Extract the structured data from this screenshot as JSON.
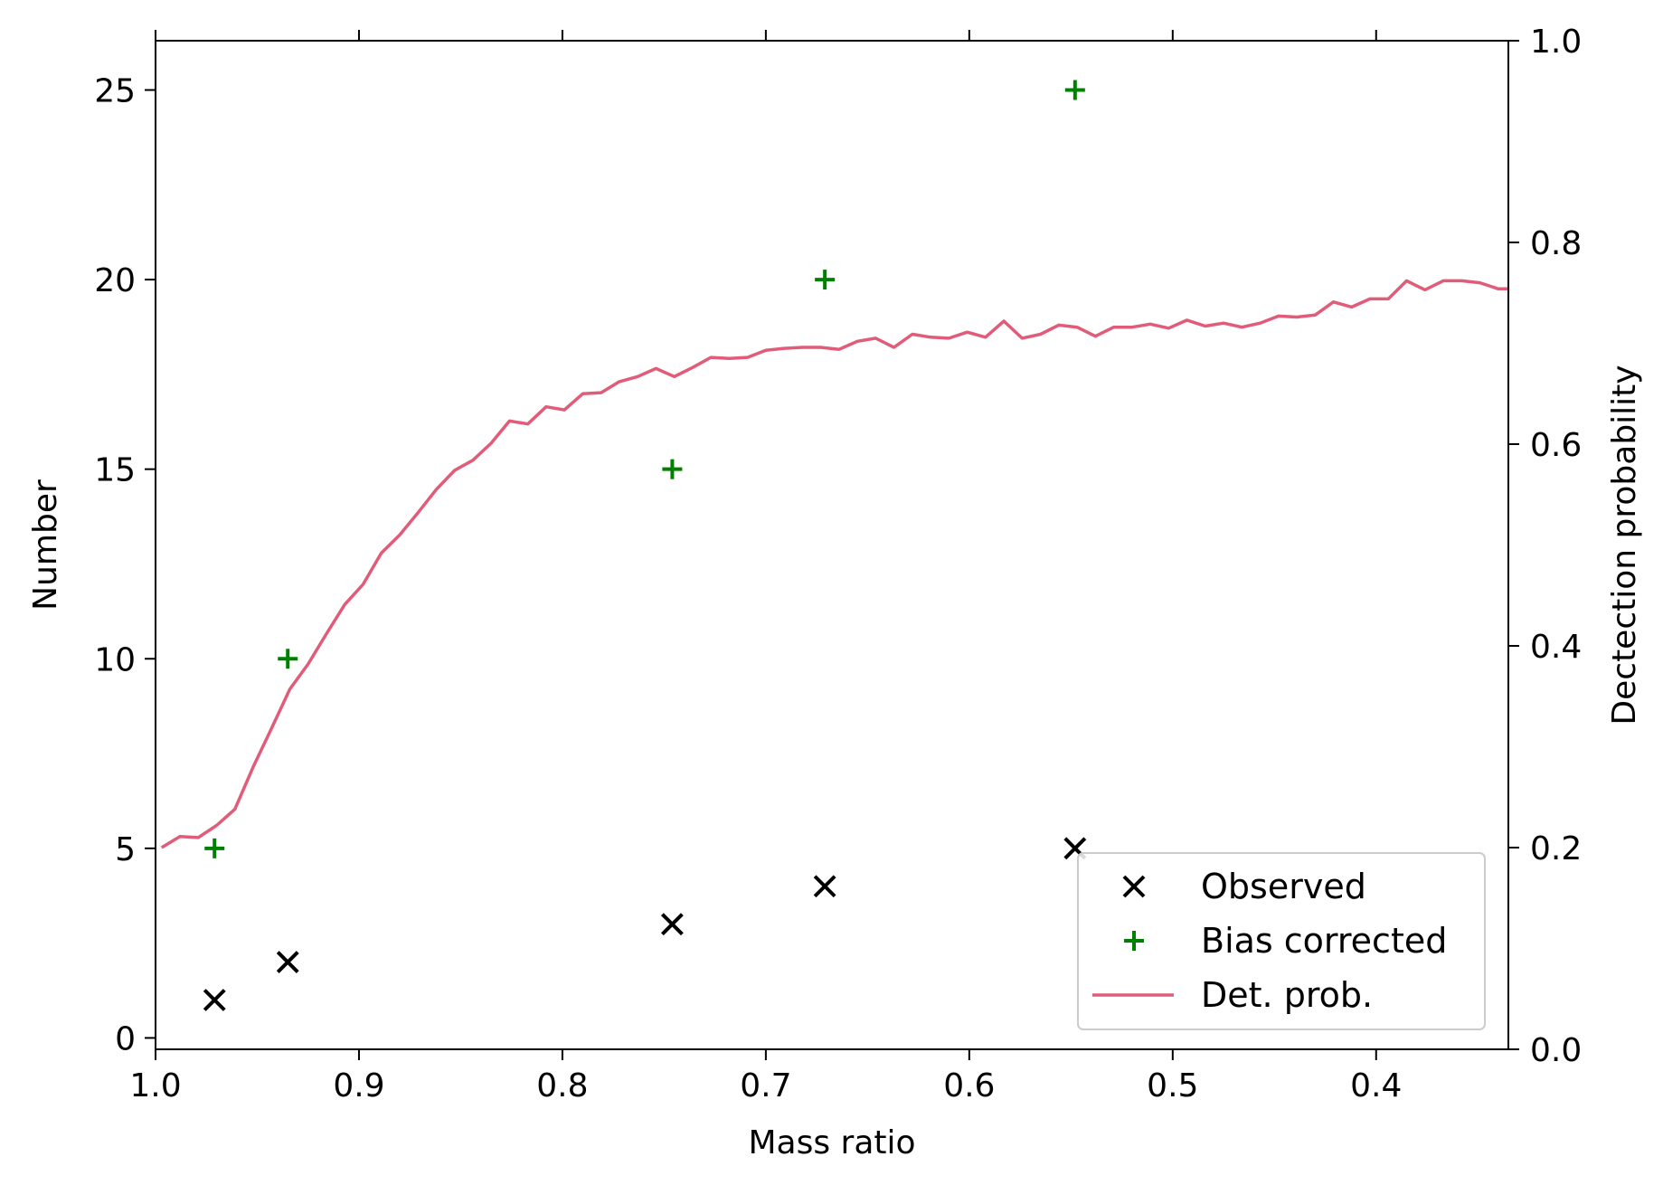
{
  "chart_data": {
    "type": "scatter",
    "xlabel": "Mass ratio",
    "ylabel": "Number",
    "y2label": "Dectection probability",
    "xlim": [
      1.0,
      0.335
    ],
    "x_reversed": true,
    "ylim": [
      -0.3,
      26.3
    ],
    "y2lim": [
      0.0,
      1.0
    ],
    "x_ticks": [
      "1.0",
      "0.9",
      "0.8",
      "0.7",
      "0.6",
      "0.5",
      "0.4"
    ],
    "x_tick_values": [
      1.0,
      0.9,
      0.8,
      0.7,
      0.6,
      0.5,
      0.4
    ],
    "y_ticks": [
      "0",
      "5",
      "10",
      "15",
      "20",
      "25"
    ],
    "y_tick_values": [
      0,
      5,
      10,
      15,
      20,
      25
    ],
    "y2_ticks": [
      "0.0",
      "0.2",
      "0.4",
      "0.6",
      "0.8",
      "1.0"
    ],
    "y2_tick_values": [
      0.0,
      0.2,
      0.4,
      0.6,
      0.8,
      1.0
    ],
    "grid": false,
    "legend_position": "bottom-right",
    "series": [
      {
        "name": "Observed",
        "marker": "x",
        "color": "#000000",
        "axis": "left",
        "x": [
          0.971,
          0.935,
          0.746,
          0.671,
          0.548
        ],
        "y": [
          1,
          2,
          3,
          4,
          5
        ]
      },
      {
        "name": "Bias corrected",
        "marker": "+",
        "color": "#008000",
        "axis": "left",
        "x": [
          0.971,
          0.935,
          0.746,
          0.671,
          0.548
        ],
        "y": [
          5,
          10,
          15,
          20,
          25
        ]
      },
      {
        "name": "Det. prob.",
        "type": "line",
        "color": "#e05c78",
        "axis": "right",
        "x": [
          0.997,
          0.988,
          0.979,
          0.97,
          0.961,
          0.952,
          0.943,
          0.934,
          0.925,
          0.916,
          0.907,
          0.898,
          0.889,
          0.88,
          0.871,
          0.862,
          0.853,
          0.844,
          0.835,
          0.826,
          0.817,
          0.808,
          0.799,
          0.79,
          0.781,
          0.772,
          0.763,
          0.754,
          0.745,
          0.736,
          0.727,
          0.718,
          0.709,
          0.7,
          0.691,
          0.682,
          0.673,
          0.664,
          0.655,
          0.646,
          0.637,
          0.628,
          0.619,
          0.61,
          0.601,
          0.592,
          0.583,
          0.574,
          0.565,
          0.556,
          0.547,
          0.538,
          0.529,
          0.52,
          0.511,
          0.502,
          0.493,
          0.484,
          0.475,
          0.466,
          0.457,
          0.448,
          0.439,
          0.43,
          0.421,
          0.412,
          0.403,
          0.394,
          0.385,
          0.376,
          0.367,
          0.358,
          0.349,
          0.34,
          0.335
        ],
        "y": [
          0.2,
          0.211,
          0.21,
          0.222,
          0.238,
          0.28,
          0.318,
          0.357,
          0.382,
          0.412,
          0.441,
          0.461,
          0.492,
          0.51,
          0.532,
          0.555,
          0.574,
          0.584,
          0.601,
          0.623,
          0.62,
          0.637,
          0.634,
          0.65,
          0.651,
          0.662,
          0.667,
          0.675,
          0.667,
          0.676,
          0.686,
          0.685,
          0.686,
          0.693,
          0.695,
          0.696,
          0.696,
          0.694,
          0.702,
          0.705,
          0.696,
          0.709,
          0.706,
          0.705,
          0.711,
          0.706,
          0.722,
          0.705,
          0.709,
          0.718,
          0.716,
          0.707,
          0.716,
          0.716,
          0.719,
          0.715,
          0.723,
          0.717,
          0.72,
          0.716,
          0.72,
          0.727,
          0.726,
          0.728,
          0.741,
          0.736,
          0.744,
          0.744,
          0.762,
          0.753,
          0.762,
          0.762,
          0.76,
          0.754,
          0.754
        ]
      }
    ]
  }
}
